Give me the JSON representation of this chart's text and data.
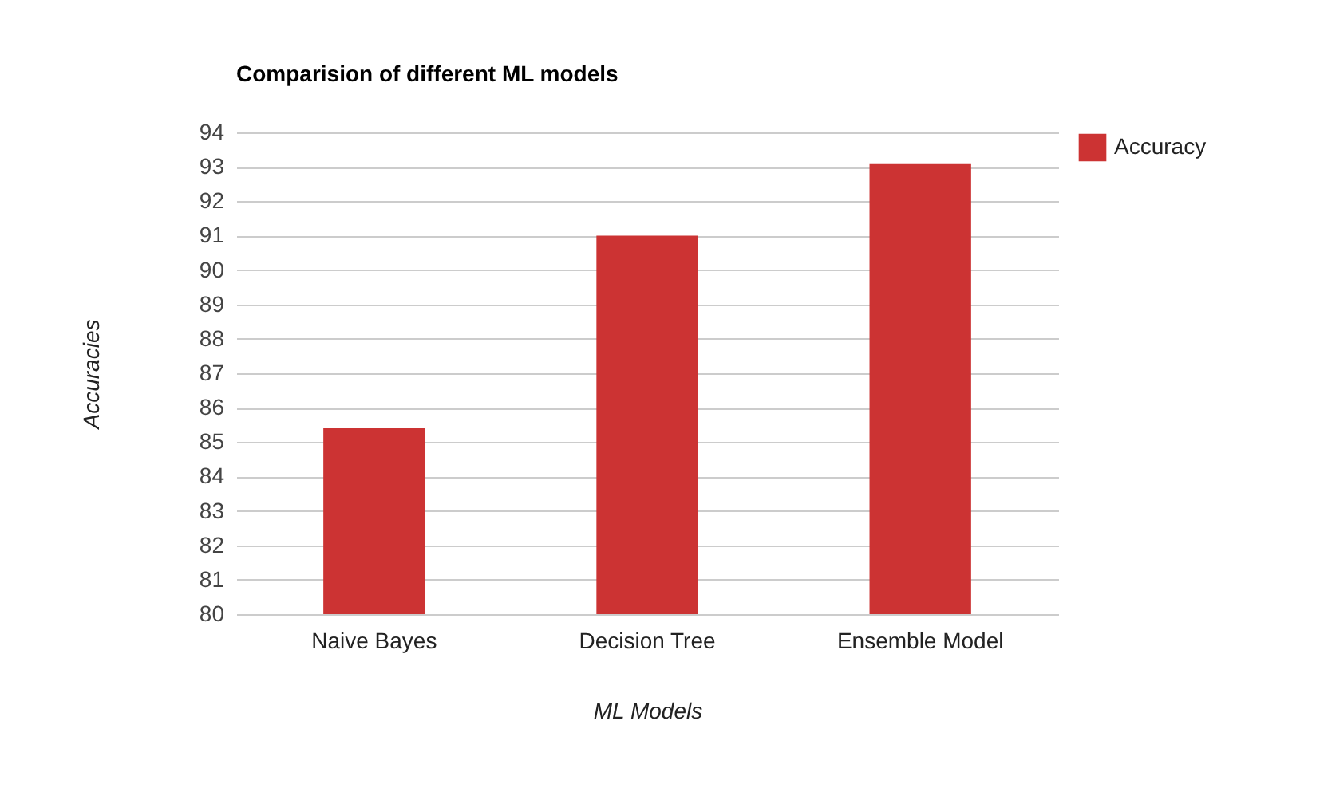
{
  "chart_data": {
    "type": "bar",
    "title": "Comparision of different ML models",
    "xlabel": "ML Models",
    "ylabel": "Accuracies",
    "categories": [
      "Naive Bayes",
      "Decision Tree",
      "Ensemble Model"
    ],
    "series": [
      {
        "name": "Accuracy",
        "color": "#cc3333",
        "values": [
          85.4,
          91,
          93.1
        ]
      }
    ],
    "ylim": [
      80,
      94
    ],
    "yticks": [
      80,
      81,
      82,
      83,
      84,
      85,
      86,
      87,
      88,
      89,
      90,
      91,
      92,
      93,
      94
    ],
    "grid": true,
    "legend": "top right"
  }
}
